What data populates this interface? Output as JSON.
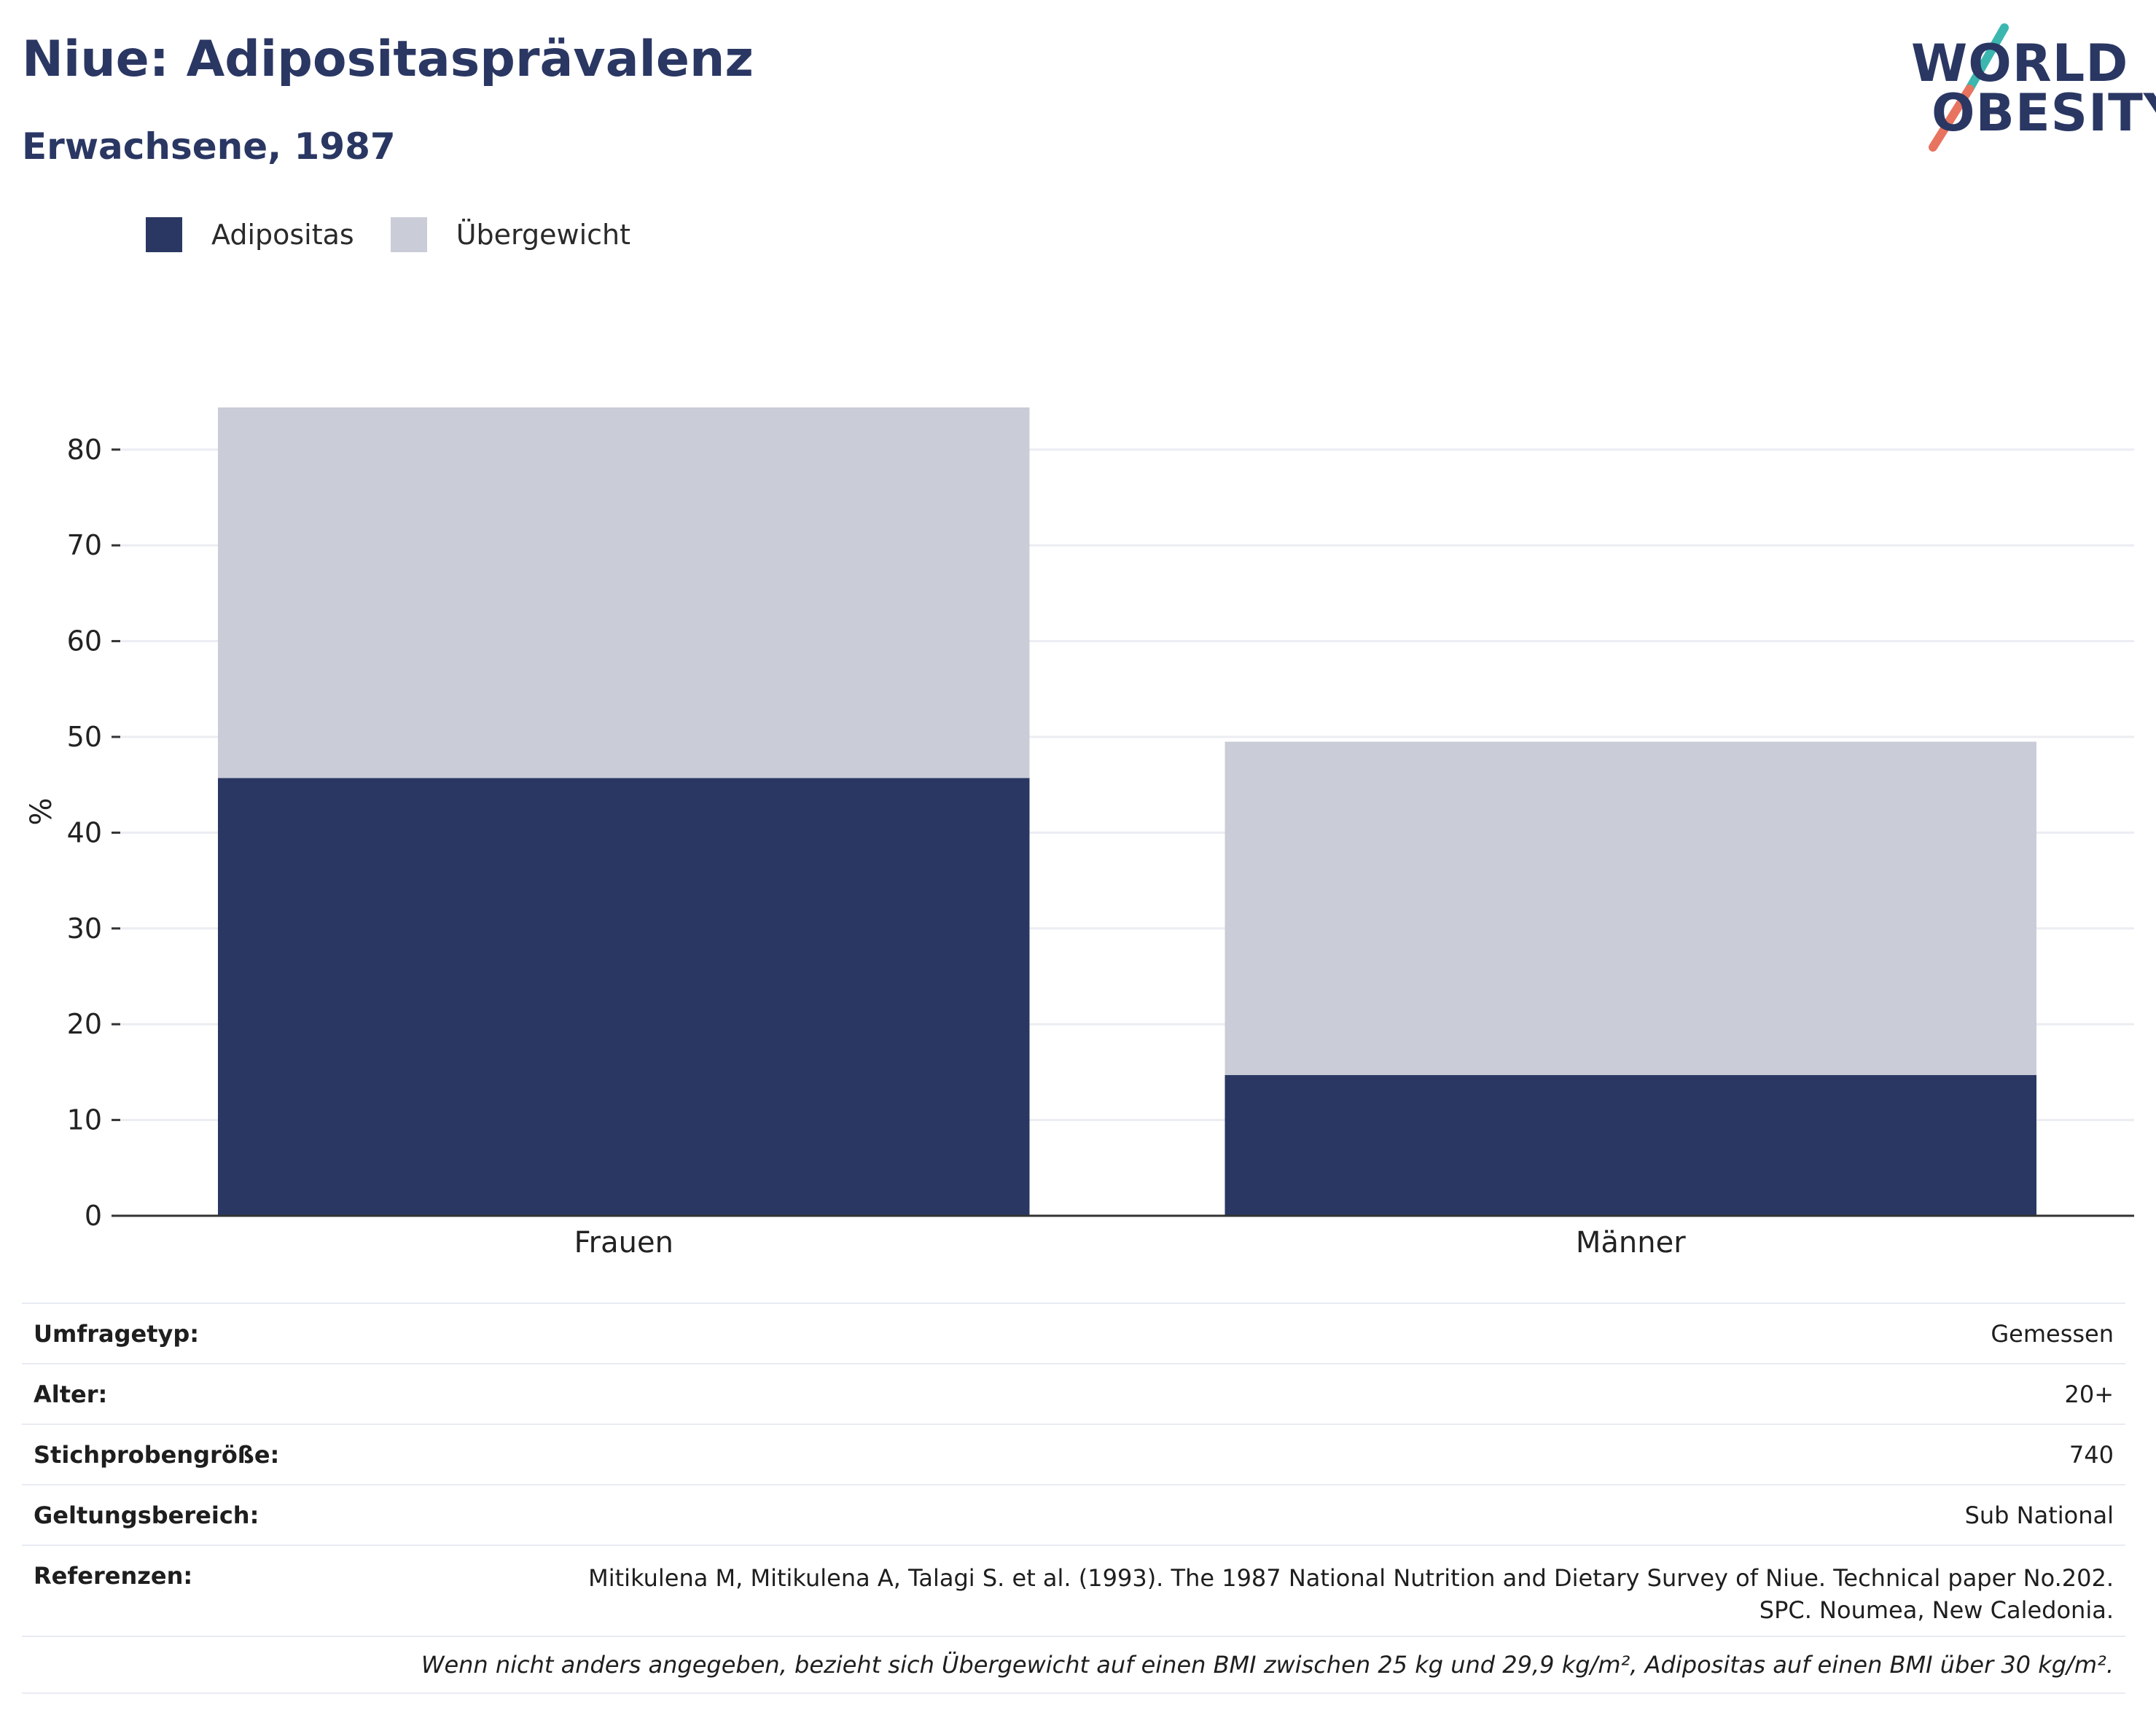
{
  "header": {
    "title": "Niue: Adipositasprävalenz",
    "subtitle": "Erwachsene, 1987"
  },
  "logo": {
    "line1": "WORLD",
    "line2": "OBESITY",
    "colors": {
      "text": "#2a3763",
      "slash_top": "#3bb7b0",
      "slash_bottom": "#e8735f"
    }
  },
  "legend": {
    "items": [
      {
        "label": "Adipositas",
        "color": "#2a3763"
      },
      {
        "label": "Übergewicht",
        "color": "#cacdd8"
      }
    ]
  },
  "chart_data": {
    "type": "bar",
    "stacked": true,
    "categories": [
      "Frauen",
      "Männer"
    ],
    "series": [
      {
        "name": "Adipositas",
        "color": "#2a3763",
        "values": [
          45.7,
          14.7
        ]
      },
      {
        "name": "Übergewicht",
        "color": "#cacdd8",
        "values": [
          38.7,
          34.8
        ]
      }
    ],
    "ylabel": "%",
    "ylim": [
      0,
      84.4
    ],
    "yticks": [
      0,
      10,
      20,
      30,
      40,
      50,
      60,
      70,
      80
    ],
    "grid": true,
    "legend_position": "top-left"
  },
  "info": {
    "rows": [
      {
        "label": "Umfragetyp:",
        "value": "Gemessen"
      },
      {
        "label": "Alter:",
        "value": "20+"
      },
      {
        "label": "Stichprobengröße:",
        "value": "740"
      },
      {
        "label": "Geltungsbereich:",
        "value": "Sub National"
      }
    ],
    "references": {
      "label": "Referenzen:",
      "line1": "Mitikulena M, Mitikulena A, Talagi S. et al. (1993). The 1987 National Nutrition and Dietary Survey of Niue. Technical paper No.202.",
      "line2": "SPC. Noumea, New Caledonia."
    },
    "note": "Wenn nicht anders angegeben, bezieht sich Übergewicht auf einen BMI zwischen 25 kg und 29,9 kg/m², Adipositas auf einen BMI über 30 kg/m²."
  }
}
